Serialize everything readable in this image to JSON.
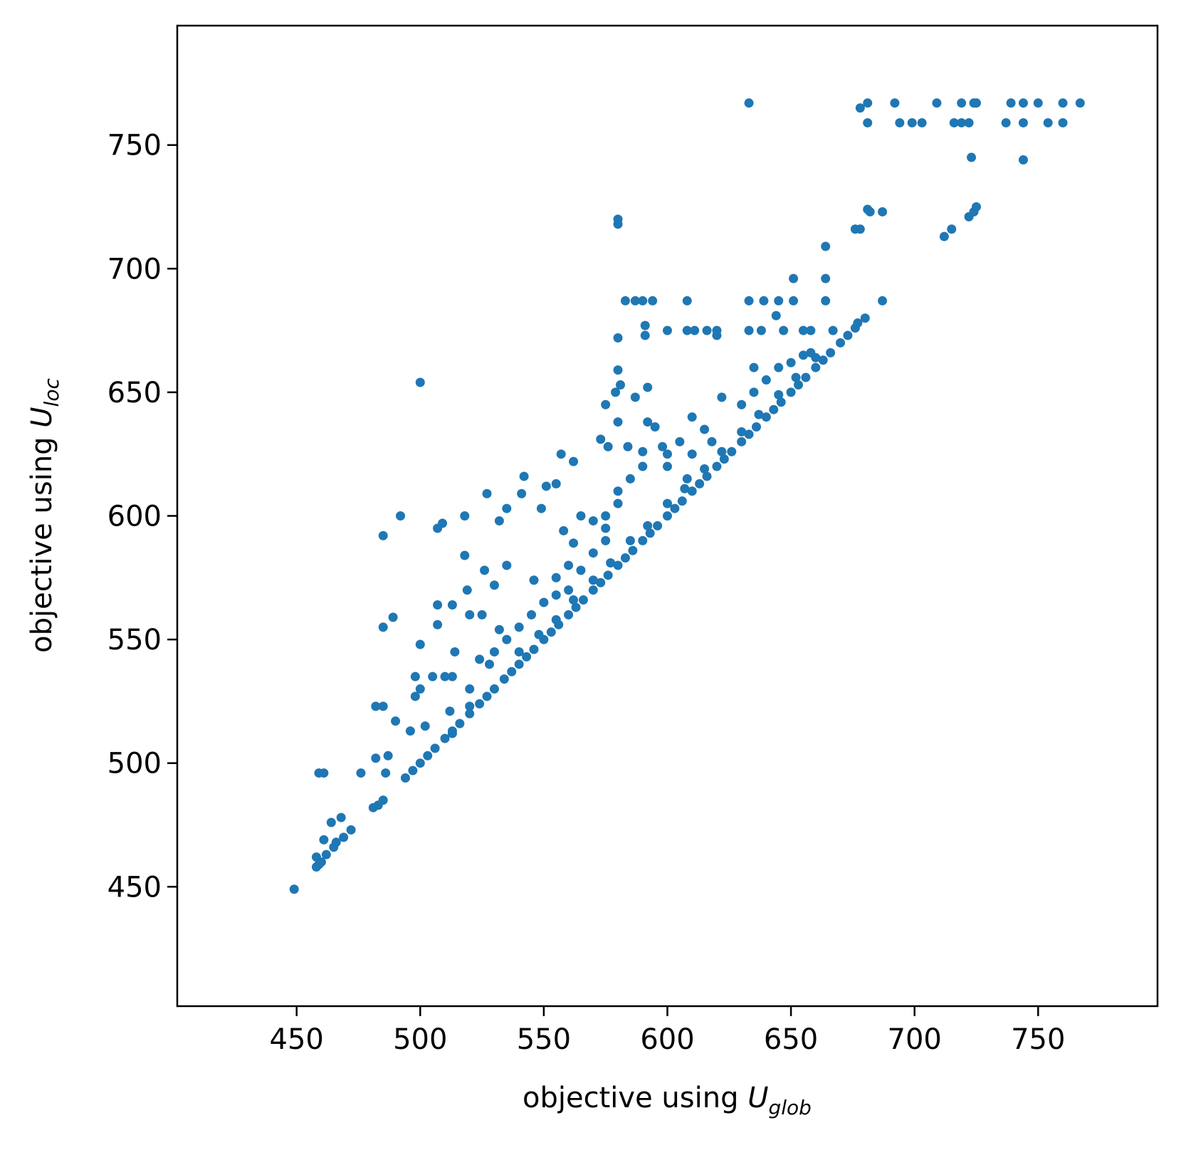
{
  "chart_data": {
    "type": "scatter",
    "xlabel": {
      "text": "objective using ",
      "symbol": "U",
      "subscript": "glob"
    },
    "ylabel": {
      "text": "objective using ",
      "symbol": "U",
      "subscript": "loc"
    },
    "color": "#1f77b4",
    "xlim": [
      401.7,
      798.3
    ],
    "ylim": [
      401.7,
      798.3
    ],
    "xticks": [
      450,
      500,
      550,
      600,
      650,
      700,
      750
    ],
    "yticks": [
      450,
      500,
      550,
      600,
      650,
      700,
      750
    ],
    "x": [
      633,
      681,
      692,
      709,
      719,
      724,
      725,
      739,
      744,
      750,
      760,
      767,
      681,
      694,
      699,
      703,
      716,
      719,
      722,
      737,
      744,
      754,
      760,
      678,
      723,
      744,
      681,
      682,
      687,
      676,
      678,
      580,
      580,
      712,
      715,
      722,
      724,
      725,
      664,
      583,
      587,
      590,
      594,
      608,
      633,
      639,
      645,
      651,
      664,
      687,
      651,
      664,
      600,
      608,
      611,
      616,
      620,
      633,
      638,
      647,
      655,
      658,
      667,
      677,
      591,
      591,
      580,
      644,
      620,
      500,
      580,
      581,
      579,
      587,
      592,
      575,
      580,
      592,
      595,
      573,
      576,
      557,
      562,
      584,
      590,
      600,
      608,
      542,
      551,
      555,
      527,
      541,
      535,
      549,
      518,
      532,
      509,
      507,
      492,
      485,
      558,
      562,
      518,
      535,
      526,
      546,
      530,
      519,
      507,
      513,
      489,
      507,
      485,
      520,
      525,
      532,
      500,
      514,
      524,
      498,
      505,
      510,
      513,
      500,
      498,
      482,
      485,
      512,
      490,
      502,
      496,
      513,
      487,
      482,
      461,
      459,
      476,
      486,
      485,
      483,
      481,
      468,
      464,
      472,
      469,
      461,
      466,
      465,
      462,
      458,
      460,
      459,
      458,
      449,
      565,
      570,
      575,
      575,
      570,
      560,
      565,
      555,
      560,
      555,
      550,
      545,
      540,
      535,
      530,
      528,
      520,
      598,
      600,
      605,
      590,
      585,
      580,
      580,
      575,
      610,
      615,
      618,
      610,
      622,
      630,
      635,
      640,
      645,
      635,
      650,
      655,
      658,
      494,
      497,
      500,
      503,
      506,
      510,
      513,
      516,
      520,
      524,
      527,
      530,
      534,
      537,
      540,
      543,
      546,
      550,
      553,
      556,
      560,
      563,
      566,
      570,
      573,
      576,
      580,
      583,
      586,
      590,
      593,
      596,
      600,
      603,
      606,
      610,
      613,
      616,
      620,
      623,
      626,
      630,
      633,
      636,
      640,
      643,
      646,
      650,
      653,
      656,
      660,
      663,
      666,
      670,
      673,
      676,
      680,
      520,
      540,
      555,
      570,
      585,
      600,
      615,
      630,
      645,
      660,
      548,
      562,
      577,
      592,
      607,
      622,
      637,
      652
    ],
    "values": [
      767,
      767,
      767,
      767,
      767,
      767,
      767,
      767,
      767,
      767,
      767,
      767,
      759,
      759,
      759,
      759,
      759,
      759,
      759,
      759,
      759,
      759,
      759,
      765,
      745,
      744,
      724,
      723,
      723,
      716,
      716,
      720,
      718,
      713,
      716,
      721,
      723,
      725,
      709,
      687,
      687,
      687,
      687,
      687,
      687,
      687,
      687,
      687,
      687,
      687,
      696,
      696,
      675,
      675,
      675,
      675,
      675,
      675,
      675,
      675,
      675,
      675,
      675,
      678,
      677,
      673,
      672,
      681,
      673,
      654,
      659,
      653,
      650,
      648,
      652,
      645,
      638,
      638,
      636,
      631,
      628,
      625,
      622,
      628,
      626,
      620,
      615,
      616,
      612,
      613,
      609,
      609,
      603,
      603,
      600,
      598,
      597,
      595,
      600,
      592,
      594,
      589,
      584,
      580,
      578,
      574,
      572,
      570,
      564,
      564,
      559,
      556,
      555,
      560,
      560,
      554,
      548,
      545,
      542,
      535,
      535,
      535,
      535,
      530,
      527,
      523,
      523,
      521,
      517,
      515,
      513,
      512,
      503,
      502,
      496,
      496,
      496,
      496,
      485,
      483,
      482,
      478,
      476,
      473,
      470,
      469,
      468,
      466,
      463,
      462,
      460,
      459,
      458,
      449,
      600,
      598,
      595,
      590,
      585,
      580,
      578,
      575,
      570,
      568,
      565,
      560,
      555,
      550,
      545,
      540,
      530,
      628,
      625,
      630,
      620,
      615,
      610,
      605,
      600,
      640,
      635,
      630,
      625,
      648,
      645,
      650,
      655,
      660,
      660,
      662,
      665,
      666,
      494,
      497,
      500,
      503,
      506,
      510,
      513,
      516,
      520,
      524,
      527,
      530,
      534,
      537,
      540,
      543,
      546,
      550,
      553,
      556,
      560,
      563,
      566,
      570,
      573,
      576,
      580,
      583,
      586,
      590,
      593,
      596,
      600,
      603,
      606,
      610,
      613,
      616,
      620,
      623,
      626,
      630,
      633,
      636,
      640,
      643,
      646,
      650,
      653,
      656,
      660,
      663,
      666,
      670,
      673,
      676,
      680,
      523,
      545,
      558,
      574,
      590,
      605,
      619,
      634,
      649,
      664,
      552,
      566,
      581,
      596,
      611,
      626,
      641,
      656
    ]
  }
}
